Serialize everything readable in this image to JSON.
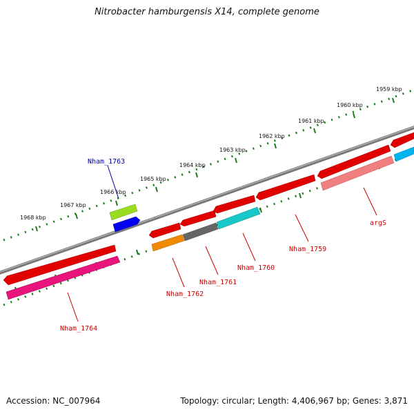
{
  "title": "Nitrobacter hamburgensis X14, complete genome",
  "footer": {
    "accession": "Accession: NC_007964",
    "stats": "Topology: circular; Length: 4,406,967 bp; Genes: 3,871"
  },
  "ruler": [
    "1959 kbp",
    "1960 kbp",
    "1961 kbp",
    "1962 kbp",
    "1963 kbp",
    "1964 kbp",
    "1965 kbp",
    "1966 kbp",
    "1967 kbp",
    "1968 kbp"
  ],
  "labels": {
    "nham_1763": "Nham_1763",
    "argS": "argS",
    "nham_1759": "Nham_1759",
    "nham_1760": "Nham_1760",
    "nham_1761": "Nham_1761",
    "nham_1762": "Nham_1762",
    "nham_1764": "Nham_1764"
  },
  "colors": {
    "backbone": "#7a7a7a",
    "ticks": "#1a7a1a",
    "red_gene": "#e00000",
    "pink_gene": "#e8147c",
    "salmon_gene": "#f08080",
    "cyan_gene": "#18c8c8",
    "gray_gene": "#666666",
    "orange_gene": "#f08a00",
    "lime_gene": "#99dd22",
    "blue_gene": "#0000ee",
    "blue_label": "#0000aa",
    "red_label": "#cc0000"
  }
}
